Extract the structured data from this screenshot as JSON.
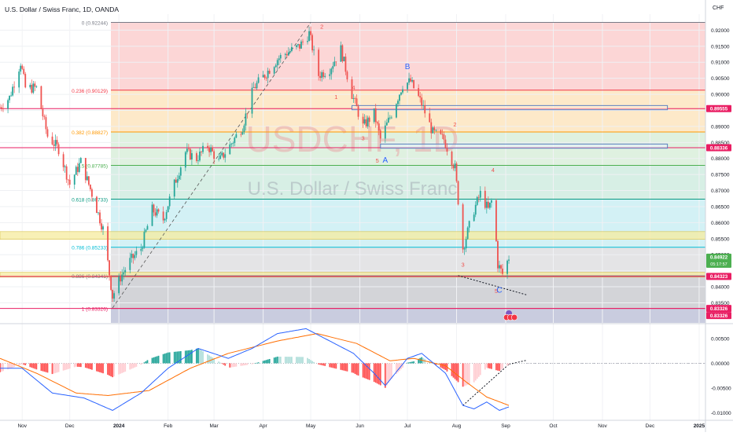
{
  "header": {
    "symbol_line": "U.S. Dollar / Swiss Franc, 1D, OANDA",
    "currency": "CHF"
  },
  "watermark": {
    "ticker": "USDCHF, 1D",
    "name": "U.S. Dollar / Swiss Franc"
  },
  "colors": {
    "up": "#26a69a",
    "down": "#ef5350",
    "macd": "#2962ff",
    "signal": "#ff6d00",
    "fib_0": "#787b86",
    "fib_236": "#f23645",
    "fib_382": "#ff9800",
    "fib_5": "#4caf50",
    "fib_618": "#089981",
    "fib_786": "#00bcd4",
    "fib_886": "#787b86",
    "fib_1": "#e91e63",
    "level_red": "#e91e63",
    "label_green": "#4caf50"
  },
  "fib_levels": [
    {
      "ratio": "0",
      "label": "0 (0.92244)",
      "price": 0.92244,
      "key": "fib_0"
    },
    {
      "ratio": "0.236",
      "label": "0.236 (0.90129)",
      "price": 0.90129,
      "key": "fib_236"
    },
    {
      "ratio": "0.382",
      "label": "0.382 (0.88827)",
      "price": 0.88827,
      "key": "fib_382"
    },
    {
      "ratio": "0.5",
      "label": "0.5 (0.87785)",
      "price": 0.87785,
      "key": "fib_5"
    },
    {
      "ratio": "0.618",
      "label": "0.618 (0.86733)",
      "price": 0.86733,
      "key": "fib_618"
    },
    {
      "ratio": "0.786",
      "label": "0.786 (0.85233)",
      "price": 0.85233,
      "key": "fib_786"
    },
    {
      "ratio": "0.886",
      "label": "0.886 (0.84341)",
      "price": 0.84341,
      "key": "fib_886"
    },
    {
      "ratio": "1",
      "label": "1 (0.83326)",
      "price": 0.83326,
      "key": "fib_1"
    }
  ],
  "price_labels": [
    {
      "text": "0.89555",
      "price": 0.89555,
      "kind": "red"
    },
    {
      "text": "0.88336",
      "price": 0.88336,
      "kind": "red"
    },
    {
      "text": "0.84922",
      "price": 0.84922,
      "kind": "green",
      "sub": "05:17:57"
    },
    {
      "text": "0.84323",
      "price": 0.84323,
      "kind": "red"
    },
    {
      "text": "0.83326",
      "price": 0.83326,
      "kind": "red"
    },
    {
      "text": "0.83326",
      "price": 0.83326,
      "kind": "red2"
    }
  ],
  "wave_labels": [
    {
      "text": "2",
      "date": "2024-05-08",
      "price": 0.9205,
      "color": "#ef5350"
    },
    {
      "text": "1",
      "date": "2024-05-17",
      "price": 0.8985,
      "color": "#ef5350"
    },
    {
      "text": "4",
      "date": "2024-05-28",
      "price": 0.9015,
      "color": "#ef5350"
    },
    {
      "text": "3",
      "date": "2024-06-03",
      "price": 0.8857,
      "color": "#ef5350"
    },
    {
      "text": "5",
      "date": "2024-06-12",
      "price": 0.8787,
      "color": "#ef5350"
    },
    {
      "text": "A",
      "date": "2024-06-17",
      "price": 0.8787,
      "color": "#2962ff"
    },
    {
      "text": "B",
      "date": "2024-07-01",
      "price": 0.9078,
      "color": "#2962ff"
    },
    {
      "text": "2",
      "date": "2024-07-31",
      "price": 0.89,
      "color": "#ef5350"
    },
    {
      "text": "4",
      "date": "2024-08-24",
      "price": 0.8758,
      "color": "#ef5350"
    },
    {
      "text": "3",
      "date": "2024-08-05",
      "price": 0.8462,
      "color": "#ef5350"
    },
    {
      "text": "5",
      "date": "2024-08-26",
      "price": 0.838,
      "color": "#ef5350"
    },
    {
      "text": "C",
      "date": "2024-08-28",
      "price": 0.8382,
      "color": "#2962ff"
    }
  ],
  "months": [
    "Nov",
    "Dec",
    "2024",
    "Feb",
    "Mar",
    "Apr",
    "May",
    "Jun",
    "Jul",
    "Aug",
    "Sep",
    "Oct",
    "Nov",
    "Dec",
    "2025"
  ],
  "chart_data": [
    {
      "type": "candlestick",
      "title": "U.S. Dollar / Swiss Franc, 1D, OANDA",
      "x_range": [
        "2023-10-18",
        "2025-01-05"
      ],
      "ylim": [
        0.8285,
        0.925
      ],
      "y_ticks": [
        0.92,
        0.915,
        0.91,
        0.905,
        0.9,
        0.895,
        0.89,
        0.885,
        0.88,
        0.875,
        0.87,
        0.865,
        0.86,
        0.855,
        0.85,
        0.845,
        0.84,
        0.835
      ],
      "y_tick_labels": [
        "0.92000",
        "0.91500",
        "0.91000",
        "0.90500",
        "0.90000",
        "",
        "0.89000",
        "0.88500",
        "0.88000",
        "0.87500",
        "0.87000",
        "0.86500",
        "0.86000",
        "0.85500",
        "0.85000",
        "",
        "0.84000",
        "0.83500"
      ],
      "x_tick_labels": [
        "Nov",
        "Dec",
        "2024",
        "Feb",
        "Mar",
        "Apr",
        "May",
        "Jun",
        "Jul",
        "Aug",
        "Sep",
        "Oct",
        "Nov",
        "Dec",
        "2025"
      ],
      "close_path": [
        [
          "2023-10-18",
          0.896
        ],
        [
          "2023-10-24",
          0.899
        ],
        [
          "2023-10-31",
          0.91
        ],
        [
          "2023-11-03",
          0.902
        ],
        [
          "2023-11-10",
          0.902
        ],
        [
          "2023-11-17",
          0.887
        ],
        [
          "2023-11-24",
          0.883
        ],
        [
          "2023-12-01",
          0.872
        ],
        [
          "2023-12-08",
          0.879
        ],
        [
          "2023-12-15",
          0.869
        ],
        [
          "2023-12-22",
          0.858
        ],
        [
          "2023-12-28",
          0.837
        ],
        [
          "2024-01-02",
          0.843
        ],
        [
          "2024-01-08",
          0.848
        ],
        [
          "2024-01-15",
          0.852
        ],
        [
          "2024-01-22",
          0.864
        ],
        [
          "2024-01-29",
          0.861
        ],
        [
          "2024-02-05",
          0.872
        ],
        [
          "2024-02-12",
          0.882
        ],
        [
          "2024-02-19",
          0.88
        ],
        [
          "2024-02-26",
          0.884
        ],
        [
          "2024-03-04",
          0.879
        ],
        [
          "2024-03-11",
          0.884
        ],
        [
          "2024-03-19",
          0.89
        ],
        [
          "2024-03-26",
          0.902
        ],
        [
          "2024-04-02",
          0.906
        ],
        [
          "2024-04-10",
          0.911
        ],
        [
          "2024-04-16",
          0.913
        ],
        [
          "2024-04-24",
          0.915
        ],
        [
          "2024-04-30",
          0.919
        ],
        [
          "2024-05-06",
          0.906
        ],
        [
          "2024-05-13",
          0.908
        ],
        [
          "2024-05-20",
          0.914
        ],
        [
          "2024-05-27",
          0.9
        ],
        [
          "2024-06-03",
          0.89
        ],
        [
          "2024-06-10",
          0.894
        ],
        [
          "2024-06-14",
          0.886
        ],
        [
          "2024-06-21",
          0.894
        ],
        [
          "2024-06-28",
          0.903
        ],
        [
          "2024-07-03",
          0.904
        ],
        [
          "2024-07-10",
          0.897
        ],
        [
          "2024-07-17",
          0.888
        ],
        [
          "2024-07-24",
          0.886
        ],
        [
          "2024-07-31",
          0.877
        ],
        [
          "2024-08-05",
          0.852
        ],
        [
          "2024-08-12",
          0.864
        ],
        [
          "2024-08-16",
          0.869
        ],
        [
          "2024-08-21",
          0.864
        ],
        [
          "2024-08-24",
          0.868
        ],
        [
          "2024-08-27",
          0.847
        ],
        [
          "2024-08-30",
          0.844
        ],
        [
          "2024-09-03",
          0.8492
        ]
      ],
      "last_price": 0.84922,
      "indicator": {
        "type": "macd",
        "ylim": [
          -0.0115,
          0.008
        ],
        "y_ticks": [
          0.005,
          0,
          -0.005,
          -0.01
        ],
        "y_tick_labels": [
          "0.00500",
          "0.00000",
          "-0.00500",
          "-0.01000"
        ],
        "macd_path": [
          [
            "2023-10-18",
            -0.001
          ],
          [
            "2023-11-01",
            -0.001
          ],
          [
            "2023-11-20",
            -0.006
          ],
          [
            "2023-12-10",
            -0.007
          ],
          [
            "2023-12-28",
            -0.0095
          ],
          [
            "2024-01-15",
            -0.006
          ],
          [
            "2024-02-01",
            -0.001
          ],
          [
            "2024-02-20",
            0.003
          ],
          [
            "2024-03-10",
            0.001
          ],
          [
            "2024-03-25",
            0.003
          ],
          [
            "2024-04-10",
            0.006
          ],
          [
            "2024-04-28",
            0.007
          ],
          [
            "2024-05-10",
            0.005
          ],
          [
            "2024-05-28",
            0.002
          ],
          [
            "2024-06-10",
            -0.002
          ],
          [
            "2024-06-17",
            -0.0045
          ],
          [
            "2024-07-01",
            0.001
          ],
          [
            "2024-07-10",
            0.002
          ],
          [
            "2024-07-25",
            -0.002
          ],
          [
            "2024-08-05",
            -0.0085
          ],
          [
            "2024-08-12",
            -0.0092
          ],
          [
            "2024-08-20",
            -0.0078
          ],
          [
            "2024-08-28",
            -0.0095
          ],
          [
            "2024-09-03",
            -0.0088
          ]
        ],
        "signal_path": [
          [
            "2023-10-18",
            0.001
          ],
          [
            "2023-11-10",
            -0.002
          ],
          [
            "2023-12-05",
            -0.006
          ],
          [
            "2023-12-25",
            -0.0065
          ],
          [
            "2024-01-20",
            -0.0055
          ],
          [
            "2024-02-15",
            -0.001
          ],
          [
            "2024-03-10",
            0.002
          ],
          [
            "2024-04-10",
            0.0045
          ],
          [
            "2024-05-05",
            0.006
          ],
          [
            "2024-05-30",
            0.004
          ],
          [
            "2024-06-20",
            0.0005
          ],
          [
            "2024-07-05",
            0.001
          ],
          [
            "2024-07-25",
            -0.0005
          ],
          [
            "2024-08-08",
            -0.004
          ],
          [
            "2024-08-20",
            -0.0068
          ],
          [
            "2024-09-03",
            -0.0085
          ]
        ]
      }
    }
  ]
}
